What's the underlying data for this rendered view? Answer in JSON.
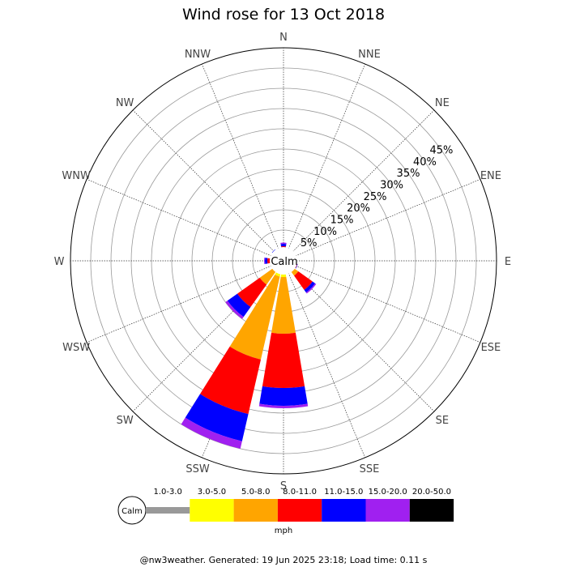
{
  "chart_data": {
    "type": "wind-rose",
    "title": "Wind rose for 13 Oct 2018",
    "directions": [
      "N",
      "NNE",
      "NE",
      "ENE",
      "E",
      "ESE",
      "SE",
      "SSE",
      "S",
      "SSW",
      "SW",
      "WSW",
      "W",
      "WNW",
      "NW",
      "NNW"
    ],
    "ring_labels": [
      "5%",
      "10%",
      "15%",
      "20%",
      "25%",
      "30%",
      "35%",
      "40%",
      "45%"
    ],
    "rmax_percent": 50,
    "calm_label": "Calm",
    "speed_bins": [
      "1.0-3.0",
      "3.0-5.0",
      "5.0-8.0",
      "8.0-11.0",
      "11.0-15.0",
      "15.0-20.0",
      "20.0-50.0"
    ],
    "bin_colors": [
      "#999999",
      "#ffff00",
      "#ffa500",
      "#ff0000",
      "#0000ff",
      "#a020f0",
      "#000000"
    ],
    "units": "mph",
    "series": [
      {
        "direction": "N",
        "values": [
          0,
          0,
          0.3,
          0.7,
          0.6,
          0.3,
          0
        ]
      },
      {
        "direction": "NNE",
        "values": [
          0,
          0,
          0,
          0,
          0,
          0,
          0
        ]
      },
      {
        "direction": "NE",
        "values": [
          0,
          0,
          0,
          0,
          0,
          0,
          0
        ]
      },
      {
        "direction": "ENE",
        "values": [
          0,
          0,
          0,
          0,
          0,
          0,
          0
        ]
      },
      {
        "direction": "E",
        "values": [
          0,
          0,
          0.4,
          0.3,
          0,
          0,
          0
        ]
      },
      {
        "direction": "ESE",
        "values": [
          0,
          0,
          0.6,
          0.3,
          0.1,
          0,
          0
        ]
      },
      {
        "direction": "SE",
        "values": [
          0,
          0.7,
          1.2,
          4.3,
          0.8,
          0.3,
          0
        ]
      },
      {
        "direction": "SSE",
        "values": [
          0,
          0,
          0,
          0,
          0,
          0,
          0
        ]
      },
      {
        "direction": "S",
        "values": [
          0,
          1.4,
          14.0,
          13.4,
          4.4,
          0.6,
          0
        ]
      },
      {
        "direction": "SSW",
        "values": [
          0,
          1.4,
          21.0,
          13.8,
          6.9,
          1.9,
          0
        ]
      },
      {
        "direction": "SW",
        "values": [
          0,
          0.6,
          4.0,
          6.8,
          3.0,
          0.6,
          0
        ]
      },
      {
        "direction": "WSW",
        "values": [
          0,
          0,
          0,
          0,
          0,
          0,
          0
        ]
      },
      {
        "direction": "W",
        "values": [
          0,
          0,
          0.4,
          1.0,
          0.6,
          0.2,
          0
        ]
      },
      {
        "direction": "WNW",
        "values": [
          0,
          0,
          0,
          0,
          0,
          0,
          0
        ]
      },
      {
        "direction": "NW",
        "values": [
          0,
          0,
          0.3,
          0.3,
          0.3,
          0,
          0
        ]
      },
      {
        "direction": "NNW",
        "values": [
          0,
          0,
          0,
          0,
          0,
          0,
          0
        ]
      }
    ],
    "grid": true
  },
  "footer": "@nw3weather. Generated: 19 Jun 2025 23:18; Load time: 0.11 s"
}
